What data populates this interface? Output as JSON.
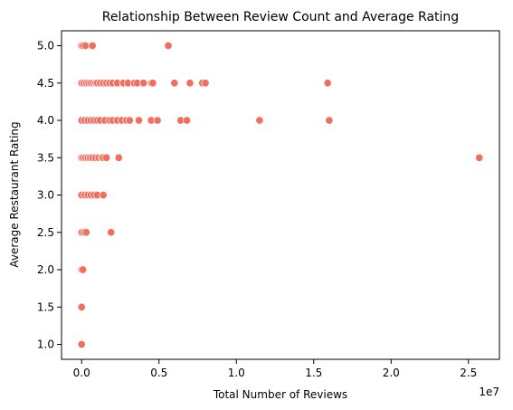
{
  "chart_data": {
    "type": "scatter",
    "title": "Relationship Between Review Count and Average Rating",
    "xlabel": "Total Number of Reviews",
    "ylabel": "Average Restaurant Rating",
    "x_offset_label": "1e7",
    "xlim": [
      -1300000,
      27000000
    ],
    "ylim": [
      0.8,
      5.2
    ],
    "x_ticks": [
      0,
      5000000,
      10000000,
      15000000,
      20000000,
      25000000
    ],
    "x_tick_labels": [
      "0.0",
      "0.5",
      "1.0",
      "1.5",
      "2.0",
      "2.5"
    ],
    "y_ticks": [
      1.0,
      1.5,
      2.0,
      2.5,
      3.0,
      3.5,
      4.0,
      4.5,
      5.0
    ],
    "y_tick_labels": [
      "1.0",
      "1.5",
      "2.0",
      "2.5",
      "3.0",
      "3.5",
      "4.0",
      "4.5",
      "5.0"
    ],
    "grid": false,
    "legend": "none",
    "marker_color": "#f07060",
    "points": [
      {
        "x": 0,
        "y": 5.0
      },
      {
        "x": 100000,
        "y": 5.0
      },
      {
        "x": 250000,
        "y": 5.0
      },
      {
        "x": 700000,
        "y": 5.0
      },
      {
        "x": 5600000,
        "y": 5.0
      },
      {
        "x": 0,
        "y": 4.5
      },
      {
        "x": 150000,
        "y": 4.5
      },
      {
        "x": 300000,
        "y": 4.5
      },
      {
        "x": 450000,
        "y": 4.5
      },
      {
        "x": 600000,
        "y": 4.5
      },
      {
        "x": 750000,
        "y": 4.5
      },
      {
        "x": 900000,
        "y": 4.5
      },
      {
        "x": 1000000,
        "y": 4.5
      },
      {
        "x": 1200000,
        "y": 4.5
      },
      {
        "x": 1400000,
        "y": 4.5
      },
      {
        "x": 1600000,
        "y": 4.5
      },
      {
        "x": 1800000,
        "y": 4.5
      },
      {
        "x": 2000000,
        "y": 4.5
      },
      {
        "x": 2300000,
        "y": 4.5
      },
      {
        "x": 2700000,
        "y": 4.5
      },
      {
        "x": 3000000,
        "y": 4.5
      },
      {
        "x": 3400000,
        "y": 4.5
      },
      {
        "x": 3600000,
        "y": 4.5
      },
      {
        "x": 4000000,
        "y": 4.5
      },
      {
        "x": 4500000,
        "y": 4.5
      },
      {
        "x": 4600000,
        "y": 4.5
      },
      {
        "x": 6000000,
        "y": 4.5
      },
      {
        "x": 7000000,
        "y": 4.5
      },
      {
        "x": 7800000,
        "y": 4.5
      },
      {
        "x": 8000000,
        "y": 4.5
      },
      {
        "x": 15900000,
        "y": 4.5
      },
      {
        "x": 0,
        "y": 4.0
      },
      {
        "x": 200000,
        "y": 4.0
      },
      {
        "x": 400000,
        "y": 4.0
      },
      {
        "x": 600000,
        "y": 4.0
      },
      {
        "x": 800000,
        "y": 4.0
      },
      {
        "x": 1000000,
        "y": 4.0
      },
      {
        "x": 1200000,
        "y": 4.0
      },
      {
        "x": 1500000,
        "y": 4.0
      },
      {
        "x": 1800000,
        "y": 4.0
      },
      {
        "x": 2000000,
        "y": 4.0
      },
      {
        "x": 2300000,
        "y": 4.0
      },
      {
        "x": 2600000,
        "y": 4.0
      },
      {
        "x": 2900000,
        "y": 4.0
      },
      {
        "x": 3100000,
        "y": 4.0
      },
      {
        "x": 3700000,
        "y": 4.0
      },
      {
        "x": 4500000,
        "y": 4.0
      },
      {
        "x": 4900000,
        "y": 4.0
      },
      {
        "x": 6400000,
        "y": 4.0
      },
      {
        "x": 6800000,
        "y": 4.0
      },
      {
        "x": 11500000,
        "y": 4.0
      },
      {
        "x": 16000000,
        "y": 4.0
      },
      {
        "x": 0,
        "y": 3.5
      },
      {
        "x": 100000,
        "y": 3.5
      },
      {
        "x": 250000,
        "y": 3.5
      },
      {
        "x": 400000,
        "y": 3.5
      },
      {
        "x": 550000,
        "y": 3.5
      },
      {
        "x": 700000,
        "y": 3.5
      },
      {
        "x": 900000,
        "y": 3.5
      },
      {
        "x": 1100000,
        "y": 3.5
      },
      {
        "x": 1300000,
        "y": 3.5
      },
      {
        "x": 1400000,
        "y": 3.5
      },
      {
        "x": 1600000,
        "y": 3.5
      },
      {
        "x": 2400000,
        "y": 3.5
      },
      {
        "x": 25700000,
        "y": 3.5
      },
      {
        "x": 0,
        "y": 3.0
      },
      {
        "x": 200000,
        "y": 3.0
      },
      {
        "x": 400000,
        "y": 3.0
      },
      {
        "x": 600000,
        "y": 3.0
      },
      {
        "x": 800000,
        "y": 3.0
      },
      {
        "x": 1000000,
        "y": 3.0
      },
      {
        "x": 1400000,
        "y": 3.0
      },
      {
        "x": 0,
        "y": 2.5
      },
      {
        "x": 150000,
        "y": 2.5
      },
      {
        "x": 300000,
        "y": 2.5
      },
      {
        "x": 1900000,
        "y": 2.5
      },
      {
        "x": 0,
        "y": 2.0
      },
      {
        "x": 80000,
        "y": 2.0
      },
      {
        "x": 0,
        "y": 1.5
      },
      {
        "x": 0,
        "y": 1.0
      }
    ]
  }
}
